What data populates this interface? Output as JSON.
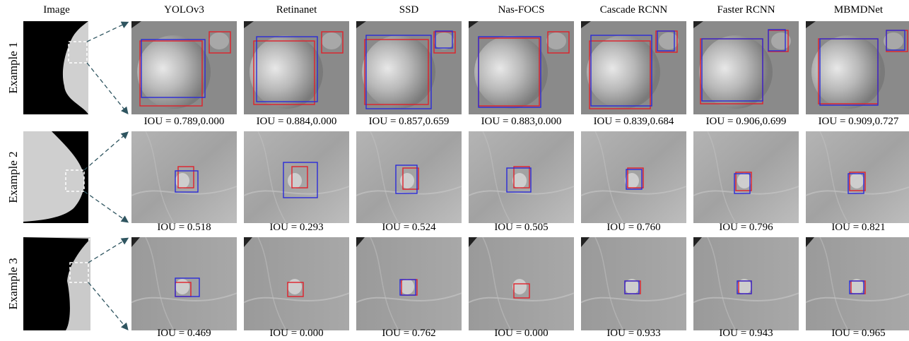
{
  "header": {
    "image": "Image",
    "methods": [
      "YOLOv3",
      "Retinanet",
      "SSD",
      "Nas-FOCS",
      "Cascade RCNN",
      "Faster RCNN",
      "MBMDNet"
    ]
  },
  "rows": [
    {
      "label": "Example 1",
      "iou": [
        "IOU = 0.789,0.000",
        "IOU = 0.884,0.000",
        "IOU = 0.857,0.659",
        "IOU = 0.883,0.000",
        "IOU = 0.839,0.684",
        "IOU = 0.906,0.699",
        "IOU = 0.909,0.727"
      ]
    },
    {
      "label": "Example 2",
      "iou": [
        "IOU = 0.518",
        "IOU = 0.293",
        "IOU = 0.524",
        "IOU = 0.505",
        "IOU = 0.760",
        "IOU = 0.796",
        "IOU = 0.821"
      ]
    },
    {
      "label": "Example 3",
      "iou": [
        "IOU = 0.469",
        "IOU = 0.000",
        "IOU = 0.762",
        "IOU = 0.000",
        "IOU = 0.933",
        "IOU = 0.943",
        "IOU = 0.965"
      ]
    }
  ]
}
